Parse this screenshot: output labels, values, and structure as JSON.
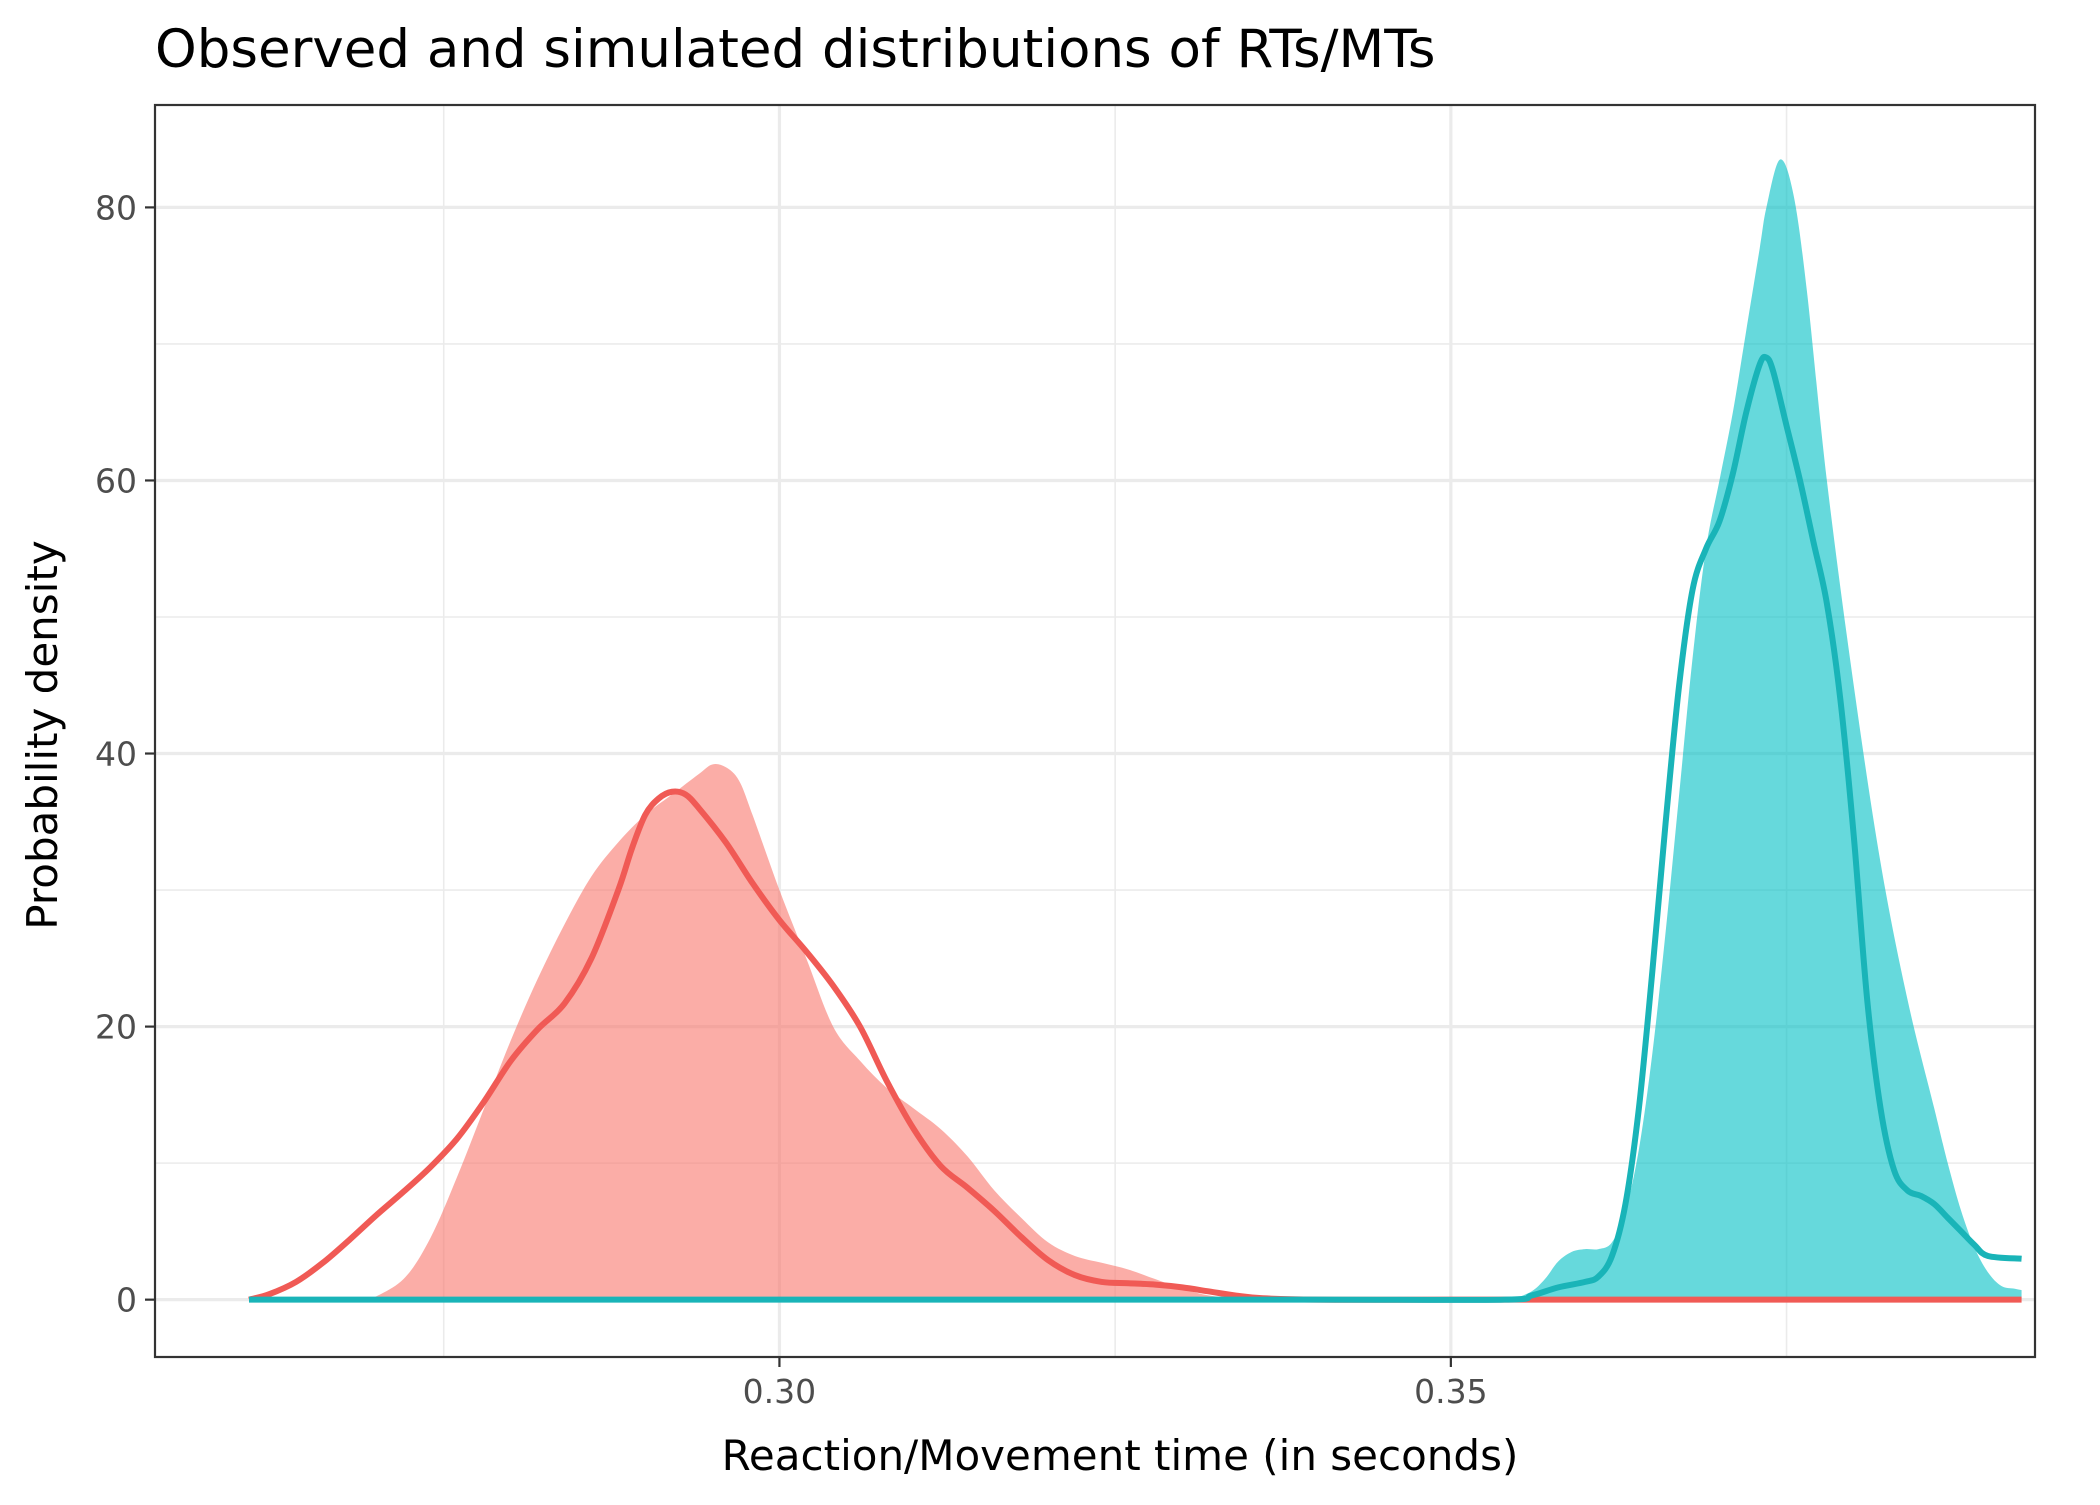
{
  "chart_data": {
    "type": "area",
    "title": "Observed and simulated distributions of RTs/MTs",
    "xlabel": "Reaction/Movement time (in seconds)",
    "ylabel": "Probability density",
    "xlim": [
      0.2535,
      0.3935
    ],
    "ylim": [
      -4.2,
      87.5
    ],
    "x_major_ticks": [
      0.3,
      0.35
    ],
    "x_tick_labels": [
      "0.30",
      "0.35"
    ],
    "x_minor_ticks": [
      0.275,
      0.325,
      0.375
    ],
    "y_major_ticks": [
      0,
      20,
      40,
      60,
      80
    ],
    "y_tick_labels": [
      "0",
      "20",
      "40",
      "60",
      "80"
    ],
    "y_minor_ticks": [
      10,
      30,
      50,
      70
    ],
    "grid": true,
    "legend": "none",
    "colors": {
      "red_fill": "#f8766d",
      "red_line": "#f05a55",
      "teal_fill": "#00bfc4",
      "teal_line": "#19b4b8"
    },
    "observed": [
      {
        "color": "red",
        "points": [
          [
            0.2695,
            0
          ],
          [
            0.272,
            1.5
          ],
          [
            0.274,
            4.5
          ],
          [
            0.276,
            9
          ],
          [
            0.278,
            14
          ],
          [
            0.28,
            19
          ],
          [
            0.282,
            23.5
          ],
          [
            0.284,
            27.5
          ],
          [
            0.286,
            31
          ],
          [
            0.288,
            33.5
          ],
          [
            0.29,
            35.5
          ],
          [
            0.292,
            37
          ],
          [
            0.294,
            38.5
          ],
          [
            0.295,
            39.2
          ],
          [
            0.296,
            39
          ],
          [
            0.297,
            38
          ],
          [
            0.298,
            35.5
          ],
          [
            0.3,
            30
          ],
          [
            0.302,
            25
          ],
          [
            0.304,
            20
          ],
          [
            0.306,
            17.5
          ],
          [
            0.308,
            15.5
          ],
          [
            0.31,
            14
          ],
          [
            0.312,
            12.5
          ],
          [
            0.314,
            10.5
          ],
          [
            0.316,
            8
          ],
          [
            0.318,
            6
          ],
          [
            0.32,
            4.2
          ],
          [
            0.322,
            3.2
          ],
          [
            0.324,
            2.7
          ],
          [
            0.326,
            2.2
          ],
          [
            0.328,
            1.5
          ],
          [
            0.33,
            0.8
          ],
          [
            0.332,
            0.3
          ],
          [
            0.334,
            0.1
          ],
          [
            0.336,
            0
          ]
        ]
      },
      {
        "color": "teal",
        "points": [
          [
            0.3545,
            0
          ],
          [
            0.356,
            0.6
          ],
          [
            0.357,
            1.5
          ],
          [
            0.358,
            2.8
          ],
          [
            0.359,
            3.5
          ],
          [
            0.36,
            3.7
          ],
          [
            0.361,
            3.7
          ],
          [
            0.362,
            4.2
          ],
          [
            0.363,
            6.5
          ],
          [
            0.364,
            11
          ],
          [
            0.365,
            18
          ],
          [
            0.366,
            27
          ],
          [
            0.367,
            37
          ],
          [
            0.368,
            47
          ],
          [
            0.369,
            55
          ],
          [
            0.37,
            60
          ],
          [
            0.371,
            65
          ],
          [
            0.372,
            71
          ],
          [
            0.373,
            77
          ],
          [
            0.3735,
            80
          ],
          [
            0.3745,
            83.5
          ],
          [
            0.3755,
            81
          ],
          [
            0.3765,
            74
          ],
          [
            0.378,
            60
          ],
          [
            0.38,
            45
          ],
          [
            0.382,
            32
          ],
          [
            0.384,
            22
          ],
          [
            0.386,
            14
          ],
          [
            0.387,
            10
          ],
          [
            0.388,
            6.5
          ],
          [
            0.389,
            3.8
          ],
          [
            0.39,
            2
          ],
          [
            0.391,
            1
          ],
          [
            0.392,
            0.8
          ],
          [
            0.3925,
            0.7
          ]
        ]
      }
    ],
    "simulated": [
      {
        "color": "red",
        "points": [
          [
            0.2605,
            0
          ],
          [
            0.262,
            0.4
          ],
          [
            0.264,
            1.3
          ],
          [
            0.266,
            2.7
          ],
          [
            0.268,
            4.4
          ],
          [
            0.27,
            6.2
          ],
          [
            0.272,
            7.9
          ],
          [
            0.274,
            9.7
          ],
          [
            0.276,
            11.8
          ],
          [
            0.278,
            14.5
          ],
          [
            0.28,
            17.5
          ],
          [
            0.282,
            19.8
          ],
          [
            0.284,
            21.7
          ],
          [
            0.286,
            25
          ],
          [
            0.288,
            30
          ],
          [
            0.289,
            33
          ],
          [
            0.29,
            35.5
          ],
          [
            0.291,
            36.7
          ],
          [
            0.292,
            37.2
          ],
          [
            0.293,
            37
          ],
          [
            0.294,
            36
          ],
          [
            0.296,
            33.5
          ],
          [
            0.298,
            30.5
          ],
          [
            0.3,
            27.8
          ],
          [
            0.302,
            25.5
          ],
          [
            0.304,
            23
          ],
          [
            0.306,
            20
          ],
          [
            0.308,
            16
          ],
          [
            0.31,
            12.5
          ],
          [
            0.312,
            9.8
          ],
          [
            0.314,
            8.2
          ],
          [
            0.316,
            6.5
          ],
          [
            0.318,
            4.6
          ],
          [
            0.32,
            2.9
          ],
          [
            0.322,
            1.8
          ],
          [
            0.324,
            1.3
          ],
          [
            0.326,
            1.2
          ],
          [
            0.328,
            1.1
          ],
          [
            0.33,
            0.9
          ],
          [
            0.332,
            0.6
          ],
          [
            0.334,
            0.3
          ],
          [
            0.336,
            0.1
          ],
          [
            0.34,
            0
          ],
          [
            0.35,
            0
          ],
          [
            0.3925,
            0
          ]
        ]
      },
      {
        "color": "teal",
        "points": [
          [
            0.2605,
            0
          ],
          [
            0.3,
            0
          ],
          [
            0.34,
            0
          ],
          [
            0.354,
            0
          ],
          [
            0.356,
            0.3
          ],
          [
            0.358,
            0.9
          ],
          [
            0.36,
            1.3
          ],
          [
            0.361,
            1.7
          ],
          [
            0.362,
            3.2
          ],
          [
            0.363,
            7
          ],
          [
            0.364,
            14
          ],
          [
            0.365,
            24
          ],
          [
            0.366,
            35
          ],
          [
            0.367,
            45
          ],
          [
            0.368,
            52
          ],
          [
            0.369,
            55
          ],
          [
            0.37,
            57
          ],
          [
            0.371,
            60.5
          ],
          [
            0.372,
            65
          ],
          [
            0.373,
            68.5
          ],
          [
            0.3735,
            69
          ],
          [
            0.374,
            68
          ],
          [
            0.375,
            64
          ],
          [
            0.376,
            60
          ],
          [
            0.377,
            55.5
          ],
          [
            0.378,
            51
          ],
          [
            0.379,
            44
          ],
          [
            0.38,
            34
          ],
          [
            0.381,
            22
          ],
          [
            0.382,
            14
          ],
          [
            0.383,
            9.5
          ],
          [
            0.384,
            8
          ],
          [
            0.385,
            7.6
          ],
          [
            0.386,
            7
          ],
          [
            0.387,
            6
          ],
          [
            0.388,
            5
          ],
          [
            0.389,
            4
          ],
          [
            0.39,
            3.2
          ],
          [
            0.3925,
            3
          ]
        ]
      }
    ]
  }
}
